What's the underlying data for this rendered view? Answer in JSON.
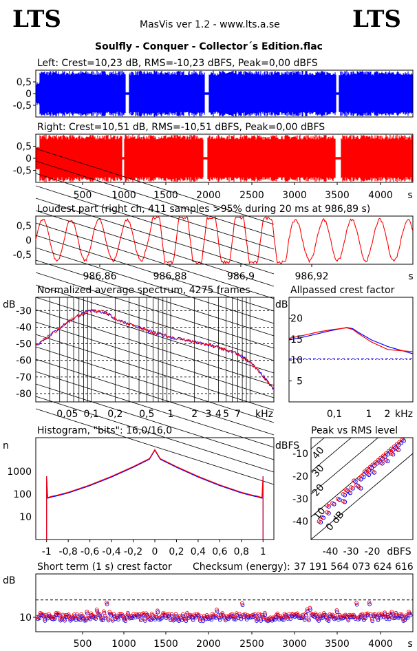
{
  "header": {
    "logo_left": "LTS",
    "logo_right": "LTS",
    "app_line": "MasVis ver 1.2 - www.lts.a.se",
    "file_title": "Soulfly - Conquer - Collector´s Edition.flac"
  },
  "colors": {
    "left": "#0000ff",
    "right": "#ff0000"
  },
  "chart_data": [
    {
      "id": "left",
      "type": "area",
      "title": "Left: Crest=10,23 dB, RMS=-10,23 dBFS, Peak=0,00 dBFS",
      "y_ticks": [
        "0,5",
        "0",
        "-0,5"
      ],
      "ylim": [
        -1,
        1
      ],
      "xlim": [
        0,
        4275
      ],
      "stats": {
        "crest_db": 10.23,
        "rms_dbfs": -10.23,
        "peak_dbfs": 0.0
      }
    },
    {
      "id": "right",
      "type": "area",
      "title": "Right: Crest=10,51 dB, RMS=-10,51 dBFS, Peak=0,00 dBFS",
      "y_ticks": [
        "0,5",
        "0",
        "-0,5"
      ],
      "ylim": [
        -1,
        1
      ],
      "xlim": [
        0,
        4275
      ],
      "x_ticks": [
        "500",
        "1000",
        "1500",
        "2000",
        "2500",
        "3000",
        "3500",
        "4000",
        "s"
      ],
      "stats": {
        "crest_db": 10.51,
        "rms_dbfs": -10.51,
        "peak_dbfs": 0.0
      }
    },
    {
      "id": "loudest",
      "type": "line",
      "title": "Loudest part (right ch, 411 samples >95% during 20 ms at 986,89 s)",
      "y_ticks": [
        "0,5",
        "0",
        "-0,5"
      ],
      "x_ticks": [
        "986,86",
        "986,88",
        "986,9",
        "986,92",
        "s"
      ],
      "xlim": [
        986.845,
        986.935
      ],
      "ylim": [
        -1,
        1
      ]
    },
    {
      "id": "spectrum",
      "type": "line",
      "title": "Normalized average spectrum, 4275 frames",
      "ylabel": "dB",
      "y_ticks": [
        "-30",
        "-40",
        "-50",
        "-60",
        "-70",
        "-80"
      ],
      "x_ticks": [
        "0,05",
        "0,1",
        "0,2",
        "0,5",
        "1",
        "2",
        "3",
        "4",
        "5",
        "7",
        "kHz"
      ],
      "series": [
        {
          "x": [
            0.02,
            0.03,
            0.05,
            0.07,
            0.1,
            0.15,
            0.2,
            0.3,
            0.5,
            0.7,
            1,
            1.5,
            2,
            3,
            4,
            5,
            7,
            10,
            15,
            20
          ],
          "values": [
            -51,
            -45,
            -37,
            -33,
            -30,
            -31,
            -35,
            -38,
            -42,
            -44,
            -46,
            -47.5,
            -49,
            -51,
            -52,
            -54,
            -56,
            -61,
            -70,
            -78
          ]
        }
      ]
    },
    {
      "id": "allpass",
      "type": "line",
      "title": "Allpassed crest factor",
      "ylabel": "dB",
      "y_ticks": [
        "20",
        "15",
        "10",
        "5"
      ],
      "ylim": [
        0,
        25
      ],
      "x_ticks": [
        "0,1",
        "1",
        "2",
        "kHz"
      ],
      "ref_level": 10.3,
      "series": [
        {
          "x": [
            0.02,
            0.05,
            0.1,
            0.2,
            0.5,
            0.7,
            1,
            2,
            5,
            20
          ],
          "values": [
            14.8,
            15.6,
            16.3,
            17,
            17.8,
            17.5,
            16.5,
            14.8,
            13.2,
            11.5
          ]
        },
        {
          "x": [
            0.02,
            0.05,
            0.1,
            0.2,
            0.5,
            0.7,
            1,
            2,
            5,
            20
          ],
          "values": [
            15.2,
            16,
            16.7,
            17.2,
            17.7,
            17.3,
            16.2,
            14.3,
            12.5,
            12
          ]
        }
      ]
    },
    {
      "id": "histogram",
      "type": "line",
      "title": "Histogram, \"bits\": 16,0/16,0",
      "ylabel": "n",
      "y_ticks": [
        "1000",
        "100",
        "10"
      ],
      "x_ticks": [
        "-1",
        "-0,8",
        "-0,6",
        "-0,4",
        "-0,2",
        "0",
        "0,2",
        "0,4",
        "0,6",
        "0,8",
        "1"
      ],
      "xlim": [
        -1.1,
        1.1
      ],
      "ylim": [
        1,
        30000
      ],
      "x": [
        -1,
        -0.99,
        -0.95,
        -0.9,
        -0.8,
        -0.6,
        -0.4,
        -0.2,
        -0.05,
        0,
        0.05,
        0.2,
        0.4,
        0.6,
        0.8,
        0.9,
        0.95,
        0.99,
        1
      ],
      "values": [
        600,
        70,
        80,
        90,
        120,
        250,
        600,
        1600,
        3600,
        9000,
        3600,
        1600,
        600,
        250,
        120,
        90,
        80,
        70,
        600
      ]
    },
    {
      "id": "peak_rms",
      "type": "scatter",
      "title": "Peak vs RMS level",
      "ylabel": "dBFS",
      "xlabel": "dBFS",
      "x_ticks": [
        "-40",
        "-30",
        "-20",
        "dBFS"
      ],
      "y_ticks": [
        "-10",
        "-20",
        "-30",
        "-40"
      ],
      "xlim": [
        -48,
        -10
      ],
      "ylim": [
        -48,
        -3
      ],
      "diag_labels": [
        "40",
        "30",
        "20",
        "10",
        "0 dB"
      ],
      "points": [
        [
          -44,
          -38
        ],
        [
          -42,
          -36
        ],
        [
          -40,
          -32
        ],
        [
          -38,
          -30
        ],
        [
          -36,
          -28
        ],
        [
          -35,
          -26
        ],
        [
          -33,
          -25
        ],
        [
          -32,
          -22
        ],
        [
          -31,
          -24
        ],
        [
          -30,
          -21
        ],
        [
          -29,
          -20
        ],
        [
          -28,
          -18
        ],
        [
          -27,
          -17
        ],
        [
          -26,
          -16
        ],
        [
          -25,
          -15
        ],
        [
          -24,
          -14
        ],
        [
          -23,
          -13
        ],
        [
          -22,
          -12
        ],
        [
          -21,
          -11
        ],
        [
          -20,
          -10
        ],
        [
          -19,
          -9
        ],
        [
          -18,
          -8
        ],
        [
          -17,
          -7
        ],
        [
          -16,
          -6
        ],
        [
          -15,
          -5
        ],
        [
          -14,
          -4
        ],
        [
          -36,
          -31
        ],
        [
          -34,
          -27
        ],
        [
          -30,
          -25
        ],
        [
          -27,
          -19
        ],
        [
          -25,
          -18
        ],
        [
          -22,
          -14
        ],
        [
          -20,
          -13
        ],
        [
          -18,
          -10
        ],
        [
          -16,
          -8
        ],
        [
          -42,
          -33
        ],
        [
          -45,
          -40
        ]
      ]
    },
    {
      "id": "short_term_crest",
      "type": "scatter",
      "title": "Short term (1 s) crest factor",
      "ylabel": "dB",
      "y_ticks": [
        "10"
      ],
      "x_ticks": [
        "500",
        "1000",
        "1500",
        "2000",
        "2500",
        "3000",
        "3500",
        "4000",
        "s"
      ],
      "xlim": [
        0,
        4275
      ],
      "ylim": [
        5,
        25
      ],
      "ref_level": 16,
      "checksum_label": "Checksum (energy):",
      "checksum": "37 191 564 073 624 616"
    }
  ]
}
